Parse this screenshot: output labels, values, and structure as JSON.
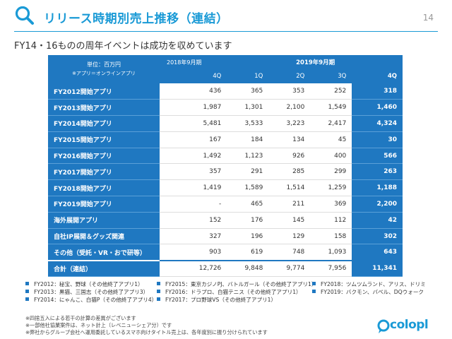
{
  "header": {
    "title": "リリース時期別売上推移（連結）",
    "page_number": "14"
  },
  "subtitle": "FY14・16ものの周年イベントは成功を収めています",
  "table": {
    "unit_label": "単位：百万円",
    "unit_note": "※アプリ＝オンラインアプリ",
    "period_2018": "2018年9月期",
    "period_2019": "2019年9月期",
    "quarters": [
      "4Q",
      "1Q",
      "2Q",
      "3Q",
      "4Q"
    ],
    "rows": [
      {
        "label": "FY2012開始アプリ",
        "values": [
          "436",
          "365",
          "353",
          "252",
          "318"
        ]
      },
      {
        "label": "FY2013開始アプリ",
        "values": [
          "1,987",
          "1,301",
          "2,100",
          "1,549",
          "1,460"
        ]
      },
      {
        "label": "FY2014開始アプリ",
        "values": [
          "5,481",
          "3,533",
          "3,223",
          "2,417",
          "4,324"
        ]
      },
      {
        "label": "FY2015開始アプリ",
        "values": [
          "167",
          "184",
          "134",
          "45",
          "30"
        ]
      },
      {
        "label": "FY2016開始アプリ",
        "values": [
          "1,492",
          "1,123",
          "926",
          "400",
          "566"
        ]
      },
      {
        "label": "FY2017開始アプリ",
        "values": [
          "357",
          "291",
          "285",
          "299",
          "263"
        ]
      },
      {
        "label": "FY2018開始アプリ",
        "values": [
          "1,419",
          "1,589",
          "1,514",
          "1,259",
          "1,188"
        ]
      },
      {
        "label": "FY2019開始アプリ",
        "values": [
          "-",
          "465",
          "211",
          "369",
          "2,200"
        ]
      },
      {
        "label": "海外展開アプリ",
        "values": [
          "152",
          "176",
          "145",
          "112",
          "42"
        ]
      },
      {
        "label": "自社IP展開＆グッズ関連",
        "values": [
          "327",
          "196",
          "129",
          "158",
          "302"
        ]
      },
      {
        "label": "その他（受託・VR・おで研等）",
        "values": [
          "903",
          "619",
          "748",
          "1,093",
          "643"
        ]
      },
      {
        "label": "合計（連結）",
        "values": [
          "12,726",
          "9,848",
          "9,774",
          "7,956",
          "11,341"
        ]
      }
    ]
  },
  "legend": {
    "col1": [
      "FY2012：秘宝、野球（その他終了アプリ1）",
      "FY2013：黒猫、三国志（その他終了アプリ3）",
      "FY2014：にゃんこ、白猫P（その他終了アプリ4）"
    ],
    "col2": [
      "FY2015：東京カジノPJ、バトルガール（その他終了アプリ1）",
      "FY2016：ドラプロ、白猫テニス（その他終了アプリ1）",
      "FY2017：プロ野球VS（その他終了アプリ1）"
    ],
    "col3": [
      "FY2018：ツムツムランド、アリス、ドリミ",
      "FY2019：バクモン、バベル、DQウォーク"
    ]
  },
  "notes": [
    "※四捨五入による若干の計算の差異がございます",
    "※一部他社協業案件は、ネット計上（レベニューシェア分）です",
    "※弊社からグループ会社へ運用委託しているスマホ向けタイトル売上は、各年度別に振り分けられています"
  ],
  "logo": {
    "text": "colopl"
  },
  "colors": {
    "accent": "#1a9ad6",
    "table_blue": "#1f78c1"
  }
}
